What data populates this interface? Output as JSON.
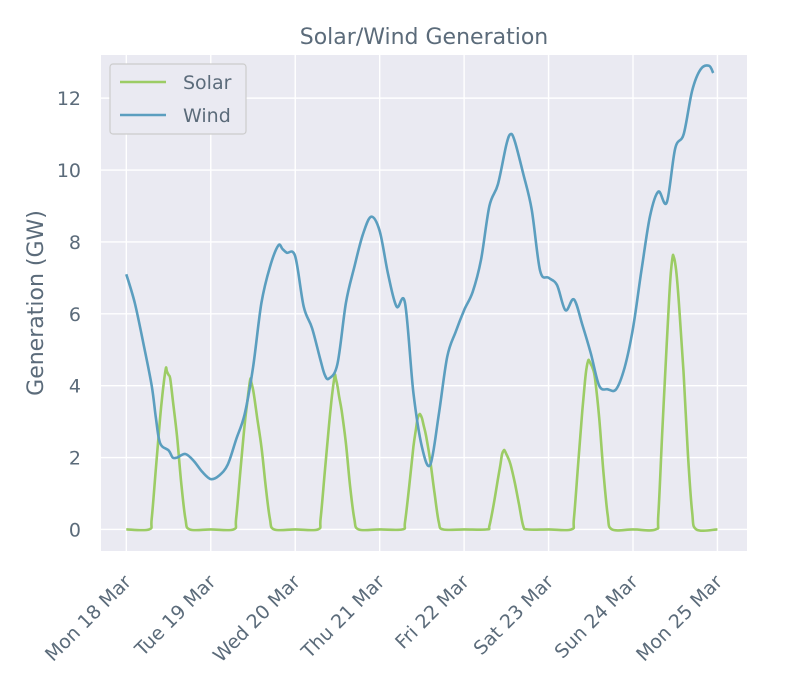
{
  "chart_data": {
    "type": "line",
    "title": "Solar/Wind Generation",
    "xlabel": "",
    "ylabel": "Generation (GW)",
    "ylim": [
      -0.6,
      13.2
    ],
    "yticks": [
      0,
      2,
      4,
      6,
      8,
      10,
      12
    ],
    "xlim": [
      -0.3,
      7.35
    ],
    "xticks": [
      0,
      1,
      2,
      3,
      4,
      5,
      6,
      7
    ],
    "xtick_labels": [
      "Mon 18 Mar",
      "Tue 19 Mar",
      "Wed 20 Mar",
      "Thu 21 Mar",
      "Fri 22 Mar",
      "Sat 23 Mar",
      "Sun 24 Mar",
      "Mon 25 Mar"
    ],
    "grid": true,
    "legend_position": "top-left",
    "series": [
      {
        "name": "Solar",
        "color": "#9ccc65",
        "x": [
          0,
          0.27,
          0.3,
          0.35,
          0.4,
          0.43,
          0.45,
          0.47,
          0.48,
          0.5,
          0.52,
          0.55,
          0.6,
          0.65,
          0.7,
          0.75,
          1.0,
          1.27,
          1.3,
          1.35,
          1.4,
          1.43,
          1.45,
          1.47,
          1.48,
          1.5,
          1.52,
          1.55,
          1.6,
          1.65,
          1.7,
          1.75,
          2.0,
          2.27,
          2.3,
          2.35,
          2.4,
          2.43,
          2.45,
          2.47,
          2.48,
          2.5,
          2.52,
          2.55,
          2.6,
          2.65,
          2.7,
          2.75,
          3.0,
          3.27,
          3.3,
          3.35,
          3.4,
          3.43,
          3.45,
          3.47,
          3.48,
          3.5,
          3.52,
          3.55,
          3.6,
          3.65,
          3.7,
          3.75,
          4.0,
          4.27,
          4.3,
          4.35,
          4.4,
          4.43,
          4.45,
          4.47,
          4.48,
          4.5,
          4.52,
          4.55,
          4.6,
          4.65,
          4.7,
          4.75,
          5.0,
          5.27,
          5.3,
          5.35,
          5.4,
          5.43,
          5.45,
          5.47,
          5.48,
          5.5,
          5.52,
          5.55,
          5.6,
          5.65,
          5.7,
          5.75,
          6.0,
          6.27,
          6.3,
          6.35,
          6.4,
          6.43,
          6.45,
          6.47,
          6.48,
          6.5,
          6.52,
          6.55,
          6.6,
          6.65,
          6.7,
          6.75,
          7.0
        ],
        "values": [
          0,
          0,
          0.3,
          1.7,
          3.1,
          3.8,
          4.2,
          4.5,
          4.4,
          4.3,
          4.2,
          3.6,
          2.6,
          1.3,
          0.3,
          0,
          0,
          0,
          0.3,
          1.6,
          2.9,
          3.5,
          3.9,
          4.2,
          4.1,
          3.9,
          3.6,
          3.1,
          2.3,
          1.2,
          0.3,
          0,
          0,
          0,
          0.3,
          1.6,
          2.9,
          3.6,
          4.0,
          4.3,
          4.2,
          4.0,
          3.7,
          3.3,
          2.4,
          1.2,
          0.3,
          0,
          0,
          0,
          0.2,
          1.2,
          2.3,
          2.8,
          3.1,
          3.2,
          3.2,
          3.1,
          2.9,
          2.6,
          1.9,
          1.0,
          0.2,
          0,
          0,
          0,
          0.1,
          0.7,
          1.4,
          1.8,
          2.1,
          2.2,
          2.2,
          2.1,
          2.0,
          1.8,
          1.3,
          0.7,
          0.1,
          0,
          0,
          0,
          0.3,
          1.8,
          3.3,
          4.1,
          4.5,
          4.7,
          4.7,
          4.6,
          4.5,
          4.2,
          3.1,
          1.6,
          0.4,
          0,
          0,
          0,
          0.4,
          2.9,
          5.2,
          6.5,
          7.2,
          7.6,
          7.6,
          7.4,
          7.0,
          6.1,
          4.3,
          2.1,
          0.5,
          0,
          0
        ]
      },
      {
        "name": "Wind",
        "color": "#5b9ebf",
        "x": [
          0,
          0.1,
          0.2,
          0.3,
          0.35,
          0.4,
          0.5,
          0.55,
          0.6,
          0.7,
          0.8,
          0.9,
          1.0,
          1.1,
          1.2,
          1.3,
          1.4,
          1.5,
          1.6,
          1.7,
          1.8,
          1.85,
          1.9,
          2.0,
          2.1,
          2.2,
          2.3,
          2.35,
          2.4,
          2.5,
          2.6,
          2.7,
          2.8,
          2.9,
          3.0,
          3.1,
          3.2,
          3.3,
          3.4,
          3.5,
          3.6,
          3.7,
          3.8,
          3.9,
          4.0,
          4.1,
          4.2,
          4.3,
          4.4,
          4.5,
          4.55,
          4.6,
          4.7,
          4.8,
          4.9,
          5.0,
          5.1,
          5.2,
          5.3,
          5.4,
          5.5,
          5.6,
          5.7,
          5.8,
          5.9,
          6.0,
          6.1,
          6.2,
          6.3,
          6.4,
          6.5,
          6.6,
          6.7,
          6.8,
          6.9,
          6.95
        ],
        "values": [
          7.1,
          6.3,
          5.2,
          4.0,
          3.1,
          2.4,
          2.2,
          2.0,
          2.0,
          2.1,
          1.9,
          1.6,
          1.4,
          1.5,
          1.8,
          2.5,
          3.2,
          4.5,
          6.3,
          7.3,
          7.9,
          7.8,
          7.7,
          7.6,
          6.2,
          5.6,
          4.7,
          4.3,
          4.2,
          4.6,
          6.3,
          7.3,
          8.2,
          8.7,
          8.3,
          7.1,
          6.2,
          6.3,
          3.8,
          2.3,
          1.8,
          3.2,
          4.8,
          5.5,
          6.1,
          6.6,
          7.5,
          9.0,
          9.6,
          10.7,
          11.0,
          10.8,
          9.9,
          8.9,
          7.2,
          7.0,
          6.8,
          6.1,
          6.4,
          5.7,
          4.9,
          4.0,
          3.9,
          3.9,
          4.5,
          5.6,
          7.2,
          8.7,
          9.4,
          9.1,
          10.6,
          11.0,
          12.2,
          12.8,
          12.9,
          12.7
        ]
      }
    ]
  }
}
